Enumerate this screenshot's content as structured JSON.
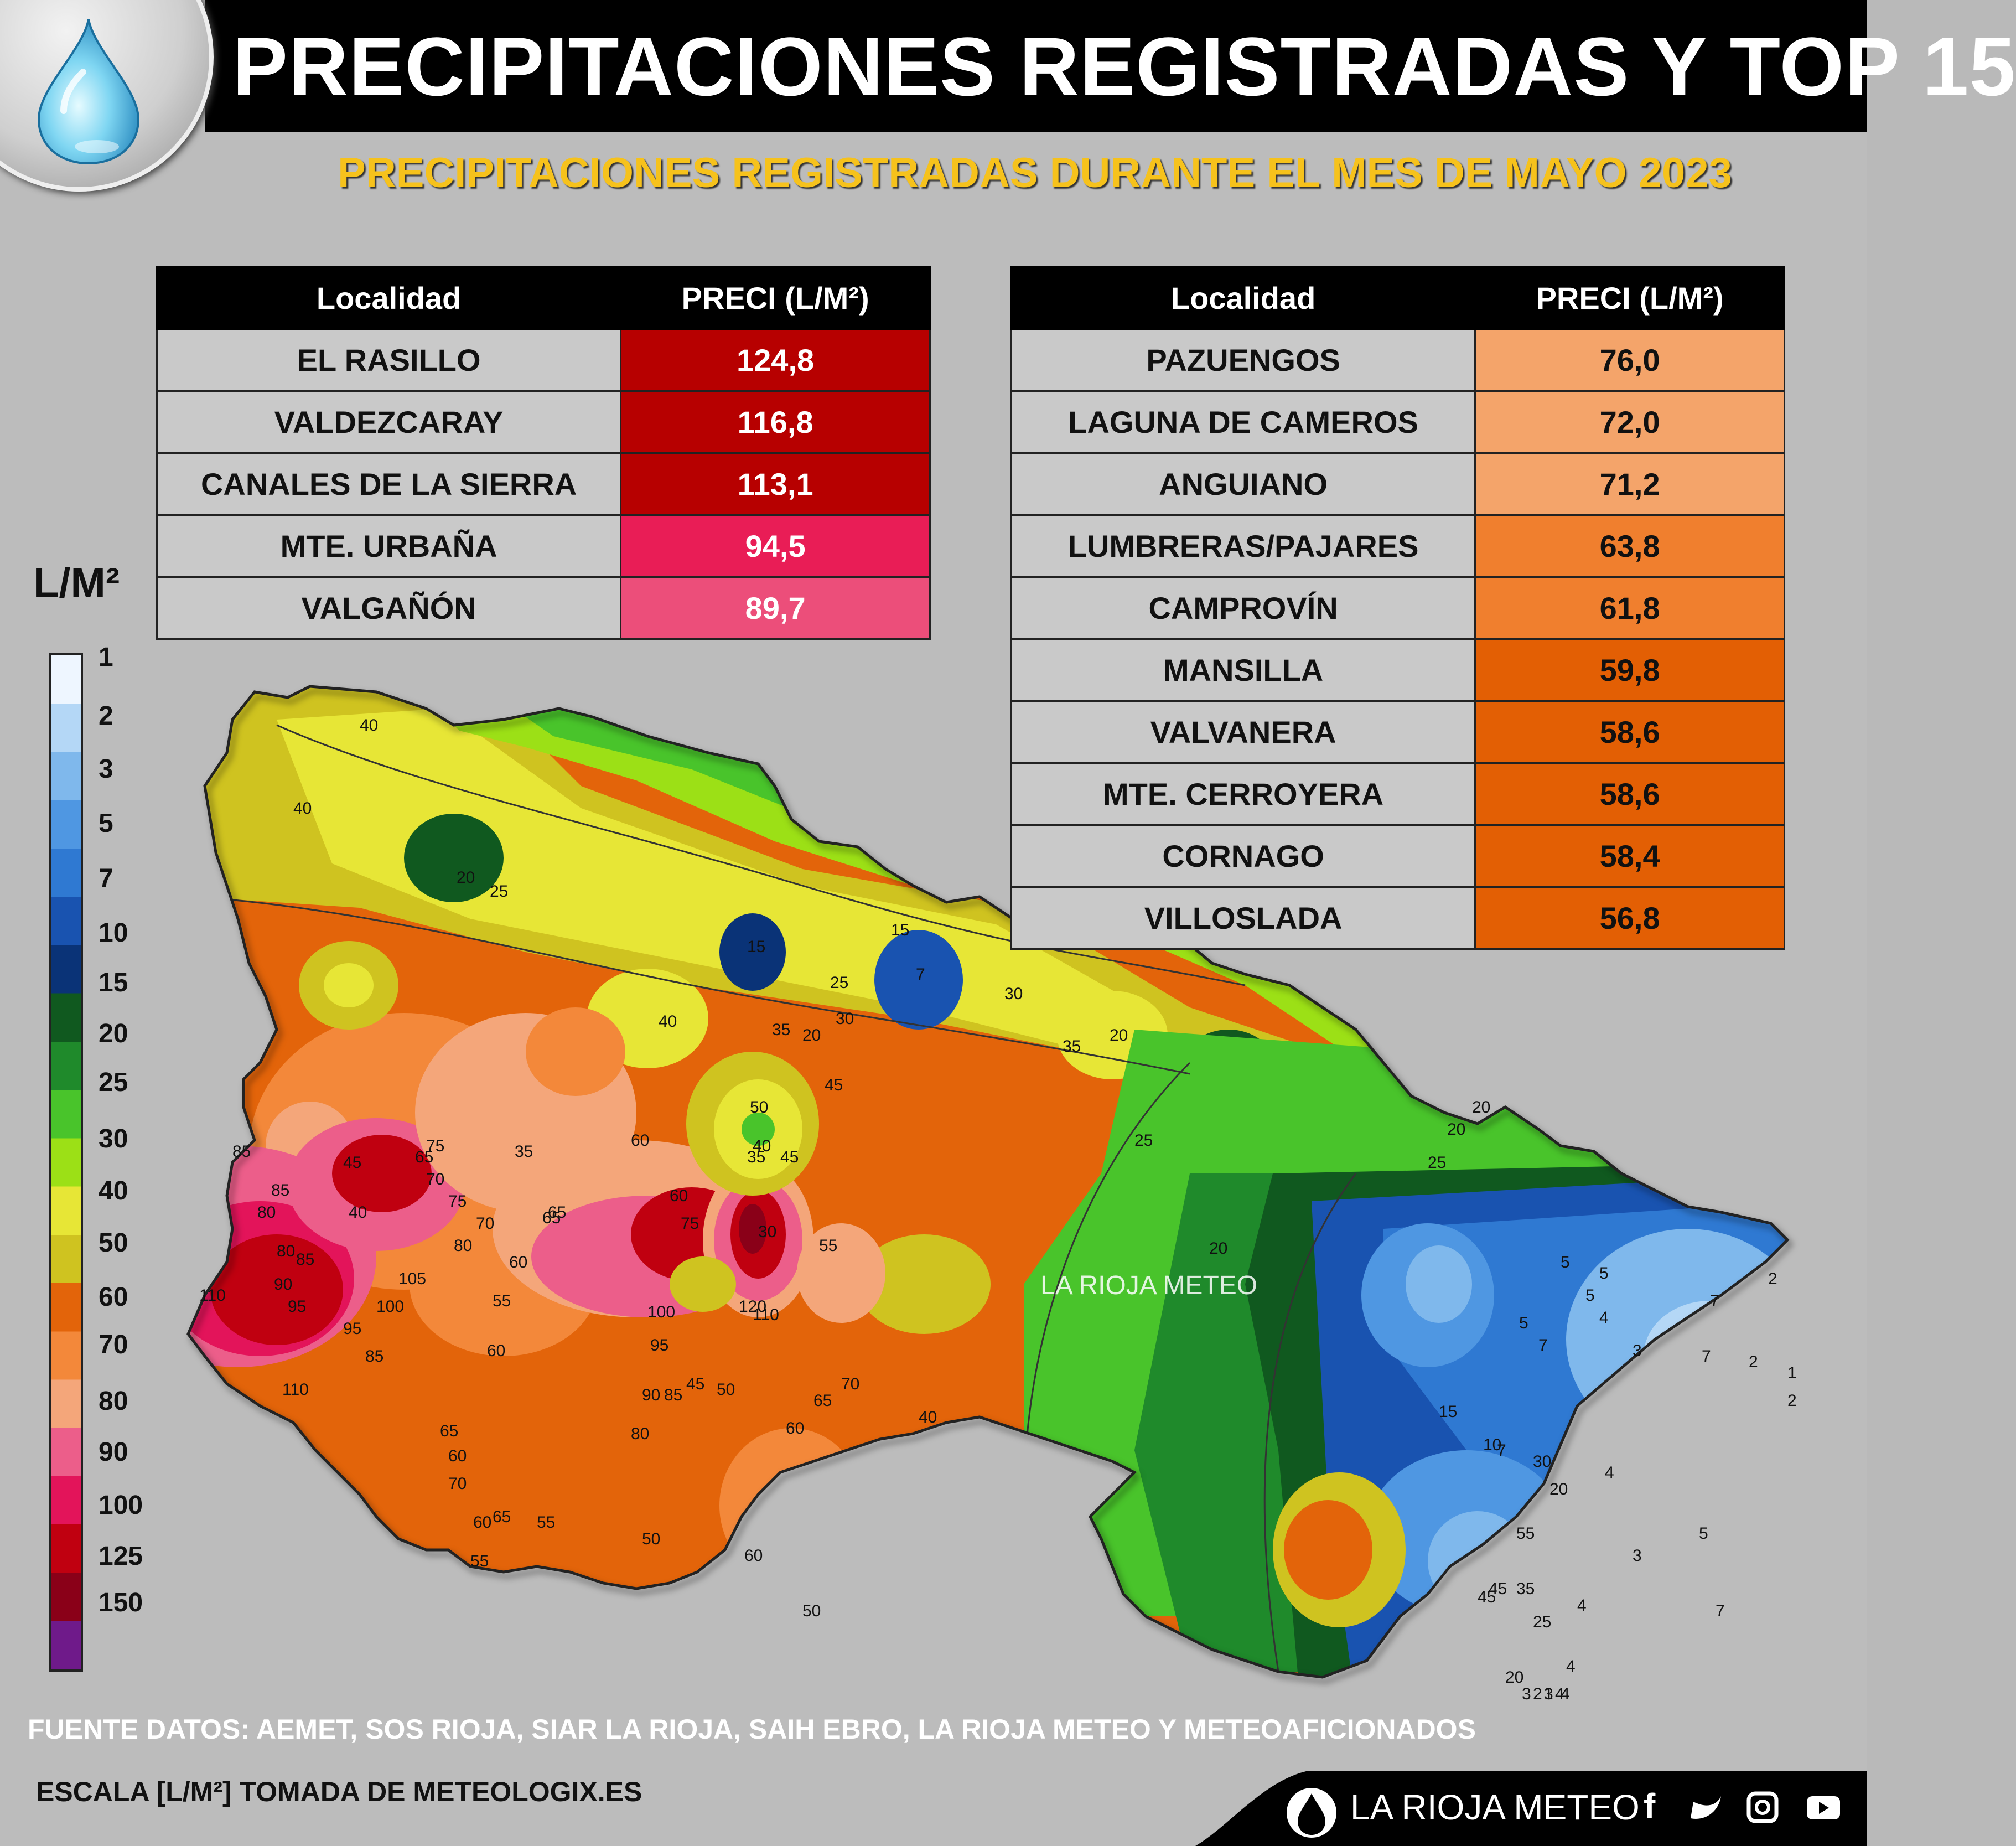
{
  "header": {
    "title": "PRECIPITACIONES REGISTRADAS Y TOP 15",
    "subtitle": "PRECIPITACIONES REGISTRADAS DURANTE EL MES DE MAYO 2023"
  },
  "table_left": {
    "col_locality": "Localidad",
    "col_value": "PRECI (L/M²)",
    "rows": [
      {
        "locality": "EL RASILLO",
        "value": "124,8",
        "color": "#b70000"
      },
      {
        "locality": "VALDEZCARAY",
        "value": "116,8",
        "color": "#b70000"
      },
      {
        "locality": "CANALES DE LA SIERRA",
        "value": "113,1",
        "color": "#b70000"
      },
      {
        "locality": "MTE. URBAÑA",
        "value": "94,5",
        "color": "#e91d56"
      },
      {
        "locality": "VALGAÑÓN",
        "value": "89,7",
        "color": "#ec4e7a"
      }
    ]
  },
  "table_right": {
    "col_locality": "Localidad",
    "col_value": "PRECI (L/M²)",
    "rows": [
      {
        "locality": "PAZUENGOS",
        "value": "76,0",
        "color": "#f4a46a"
      },
      {
        "locality": "LAGUNA DE CAMEROS",
        "value": "72,0",
        "color": "#f4a46a"
      },
      {
        "locality": "ANGUIANO",
        "value": "71,2",
        "color": "#f4a46a"
      },
      {
        "locality": "LUMBRERAS/PAJARES",
        "value": "63,8",
        "color": "#f07f2e"
      },
      {
        "locality": "CAMPROVÍN",
        "value": "61,8",
        "color": "#f07f2e"
      },
      {
        "locality": "MANSILLA",
        "value": "59,8",
        "color": "#e35f04"
      },
      {
        "locality": "VALVANERA",
        "value": "58,6",
        "color": "#e35f04"
      },
      {
        "locality": "MTE. CERROYERA",
        "value": "58,6",
        "color": "#e35f04"
      },
      {
        "locality": "CORNAGO",
        "value": "58,4",
        "color": "#e35f04"
      },
      {
        "locality": "VILLOSLADA",
        "value": "56,8",
        "color": "#e35f04"
      }
    ]
  },
  "legend": {
    "unit": "L/M²",
    "ticks": [
      "1",
      "2",
      "3",
      "5",
      "7",
      "10",
      "15",
      "20",
      "25",
      "30",
      "40",
      "50",
      "60",
      "70",
      "80",
      "90",
      "100",
      "125",
      "150"
    ],
    "colors": [
      "#eef6ff",
      "#b4d7f6",
      "#7fb8ec",
      "#4f97e2",
      "#2f79d2",
      "#1953b0",
      "#0a3377",
      "#10591f",
      "#1f8a2b",
      "#49c42b",
      "#9ce016",
      "#e7e636",
      "#cfc320",
      "#e3640a",
      "#f3883a",
      "#f4a67a",
      "#ec5e8a",
      "#e3145a",
      "#c00010",
      "#8a0018",
      "#6f1a8a"
    ]
  },
  "map": {
    "watermark": "LA RIOJA METEO",
    "contour_labels": [
      "40",
      "40",
      "20",
      "25",
      "20",
      "15",
      "7",
      "15",
      "25",
      "30",
      "35",
      "30",
      "20",
      "40",
      "35",
      "35",
      "45",
      "50",
      "20",
      "25",
      "25",
      "20",
      "20",
      "45",
      "40",
      "85",
      "85",
      "80",
      "80",
      "85",
      "90",
      "95",
      "110",
      "110",
      "105",
      "100",
      "95",
      "85",
      "75",
      "65",
      "70",
      "75",
      "80",
      "70",
      "65",
      "65",
      "60",
      "55",
      "60",
      "60",
      "35",
      "40",
      "45",
      "30",
      "55",
      "75",
      "60",
      "100",
      "95",
      "120",
      "110",
      "90",
      "85",
      "80",
      "45",
      "50",
      "70",
      "65",
      "60",
      "40",
      "65",
      "60",
      "70",
      "65",
      "60",
      "55",
      "55",
      "60",
      "50",
      "50",
      "5",
      "5",
      "7",
      "5",
      "2",
      "5",
      "4",
      "3",
      "2",
      "1",
      "2",
      "7",
      "7",
      "10",
      "7",
      "15",
      "30",
      "20",
      "55",
      "45",
      "45",
      "35",
      "25",
      "20",
      "3",
      "4",
      "4",
      "5",
      "7",
      "4",
      "3",
      "2",
      "1",
      "4",
      "4",
      "3"
    ]
  },
  "footer": {
    "source": "FUENTE DATOS: AEMET, SOS RIOJA, SIAR LA RIOJA, SAIH EBRO, LA RIOJA METEO  Y METEOAFICIONADOS",
    "scale": "ESCALA [L/M²] TOMADA DE METEOLOGIX.ES",
    "brand": "LA RIOJA METEO",
    "social": [
      "facebook-icon",
      "twitter-icon",
      "instagram-icon",
      "youtube-icon"
    ]
  }
}
